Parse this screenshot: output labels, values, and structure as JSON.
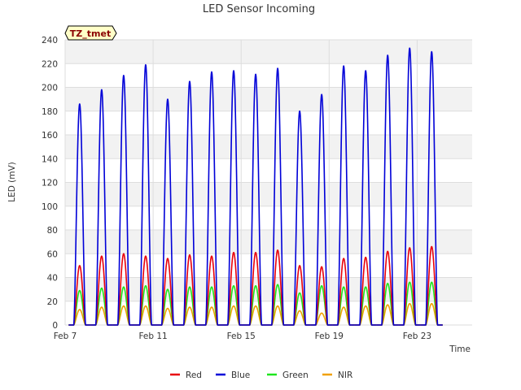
{
  "chart_data": {
    "type": "line",
    "title": "LED Sensor Incoming",
    "xlabel": "Time",
    "ylabel": "LED (mV)",
    "site_tag": "TZ_tmet",
    "ylim": [
      0,
      240
    ],
    "xlim": [
      7,
      25.5
    ],
    "yticks": [
      0,
      20,
      40,
      60,
      80,
      100,
      120,
      140,
      160,
      180,
      200,
      220,
      240
    ],
    "xticks": [
      {
        "value": 7,
        "label": "Feb 7"
      },
      {
        "value": 11,
        "label": "Feb 11"
      },
      {
        "value": 15,
        "label": "Feb 15"
      },
      {
        "value": 19,
        "label": "Feb 19"
      },
      {
        "value": 23,
        "label": "Feb 23"
      }
    ],
    "grid": true,
    "legend_position": "bottom",
    "day_centers": [
      7.66,
      8.66,
      9.66,
      10.66,
      11.66,
      12.66,
      13.66,
      14.66,
      15.66,
      16.66,
      17.66,
      18.66,
      19.66,
      20.66,
      21.66,
      22.66,
      23.66
    ],
    "series": [
      {
        "name": "Red",
        "color": "#e8000b",
        "values": [
          50,
          58,
          60,
          58,
          56,
          59,
          58,
          61,
          61,
          63,
          50,
          49,
          56,
          57,
          62,
          65,
          66
        ]
      },
      {
        "name": "Blue",
        "color": "#0000d8",
        "values": [
          186,
          198,
          210,
          219,
          190,
          205,
          213,
          214,
          211,
          216,
          180,
          194,
          218,
          214,
          227,
          233,
          230
        ]
      },
      {
        "name": "Green",
        "color": "#1ee61e",
        "values": [
          29,
          31,
          32,
          33,
          30,
          32,
          32,
          33,
          33,
          34,
          27,
          33,
          32,
          32,
          35,
          36,
          36
        ]
      },
      {
        "name": "NIR",
        "color": "#f0a000",
        "values": [
          13,
          15,
          16,
          16,
          14,
          15,
          15,
          16,
          16,
          16,
          12,
          10,
          15,
          16,
          17,
          18,
          18
        ]
      }
    ]
  }
}
